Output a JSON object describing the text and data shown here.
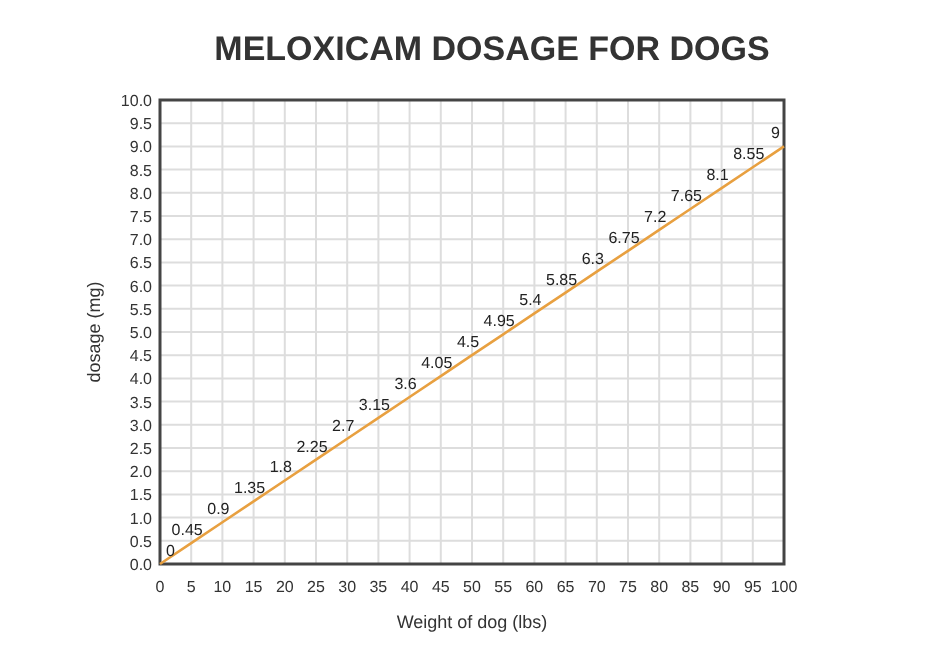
{
  "chart_data": {
    "type": "line",
    "title": "MELOXICAM DOSAGE FOR DOGS",
    "xlabel": "Weight of dog (lbs)",
    "ylabel": "dosage (mg)",
    "x": [
      0,
      5,
      10,
      15,
      20,
      25,
      30,
      35,
      40,
      45,
      50,
      55,
      60,
      65,
      70,
      75,
      80,
      85,
      90,
      95,
      100
    ],
    "series": [
      {
        "color": "#e8a040",
        "values": [
          0,
          0.45,
          0.9,
          1.35,
          1.8,
          2.25,
          2.7,
          3.15,
          3.6,
          4.05,
          4.5,
          4.95,
          5.4,
          5.85,
          6.3,
          6.75,
          7.2,
          7.65,
          8.1,
          8.55,
          9
        ]
      }
    ],
    "xlim": [
      0,
      100
    ],
    "xticks": [
      0,
      5,
      10,
      15,
      20,
      25,
      30,
      35,
      40,
      45,
      50,
      55,
      60,
      65,
      70,
      75,
      80,
      85,
      90,
      95,
      100
    ],
    "ylim": [
      0,
      10
    ],
    "yticks": [
      {
        "value": 0,
        "label": "0.0"
      },
      {
        "value": 0.5,
        "label": "0.5"
      },
      {
        "value": 1,
        "label": "1.0"
      },
      {
        "value": 1.5,
        "label": "1.5"
      },
      {
        "value": 2,
        "label": "2.0"
      },
      {
        "value": 2.5,
        "label": "2.5"
      },
      {
        "value": 3,
        "label": "3.0"
      },
      {
        "value": 3.5,
        "label": "3.5"
      },
      {
        "value": 4,
        "label": "4.0"
      },
      {
        "value": 4.5,
        "label": "4.5"
      },
      {
        "value": 5,
        "label": "5.0"
      },
      {
        "value": 5.5,
        "label": "5.5"
      },
      {
        "value": 6,
        "label": "6.0"
      },
      {
        "value": 6.5,
        "label": "6.5"
      },
      {
        "value": 7,
        "label": "7.0"
      },
      {
        "value": 7.5,
        "label": "7.5"
      },
      {
        "value": 8,
        "label": "8.0"
      },
      {
        "value": 8.5,
        "label": "8.5"
      },
      {
        "value": 9,
        "label": "9.0"
      },
      {
        "value": 9.5,
        "label": "9.5"
      },
      {
        "value": 10,
        "label": "10.0"
      }
    ],
    "grid": true,
    "data_labels": true,
    "marker": "none",
    "line_style": "solid"
  }
}
